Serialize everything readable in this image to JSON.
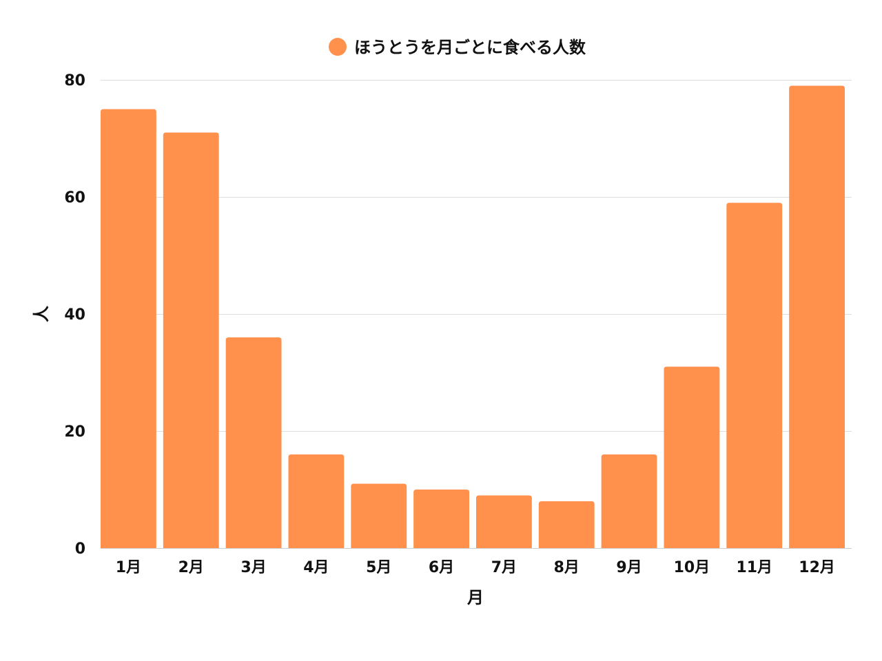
{
  "chart_data": {
    "type": "bar",
    "categories": [
      "1月",
      "2月",
      "3月",
      "4月",
      "5月",
      "6月",
      "7月",
      "8月",
      "9月",
      "10月",
      "11月",
      "12月"
    ],
    "series": [
      {
        "name": "ほうとうを月ごとに食べる人数",
        "values": [
          75,
          71,
          36,
          16,
          11,
          10,
          9,
          8,
          16,
          31,
          59,
          79
        ],
        "color": "#ff914d"
      }
    ],
    "xlabel": "月",
    "ylabel": "人",
    "ylim": [
      0,
      80
    ],
    "yticks": [
      0,
      20,
      40,
      60,
      80
    ],
    "grid": true,
    "legend_position": "top-center"
  }
}
